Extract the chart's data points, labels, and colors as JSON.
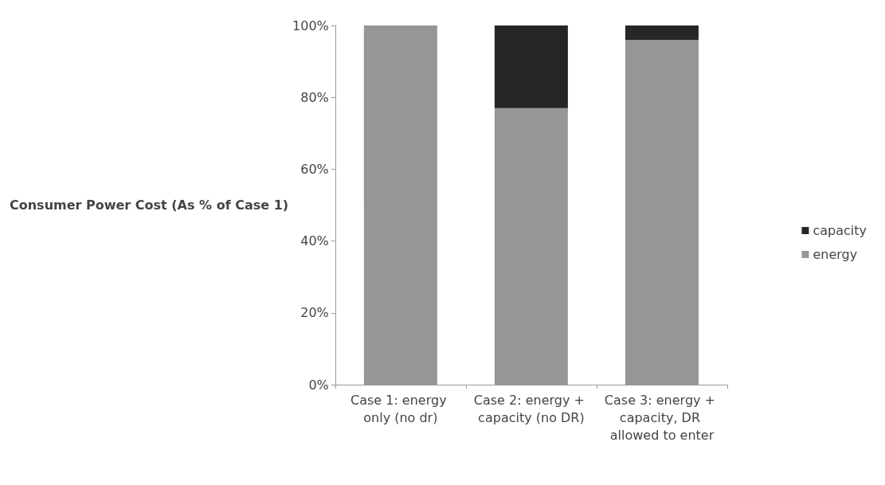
{
  "chart_data": {
    "type": "bar",
    "stacked": true,
    "ylabel": "Consumer Power Cost (As % of Case 1)",
    "categories": [
      "Case 1: energy only (no dr)",
      "Case 2: energy + capacity (no DR)",
      "Case 3: energy + capacity, DR allowed to enter"
    ],
    "series": [
      {
        "name": "energy",
        "color": "#969696",
        "values": [
          100,
          77,
          96
        ]
      },
      {
        "name": "capacity",
        "color": "#262626",
        "values": [
          0,
          23,
          4
        ]
      }
    ],
    "ylim": [
      0,
      100
    ],
    "yticks": [
      {
        "value": 0,
        "label": "0%"
      },
      {
        "value": 20,
        "label": "20%"
      },
      {
        "value": 40,
        "label": "40%"
      },
      {
        "value": 60,
        "label": "60%"
      },
      {
        "value": 80,
        "label": "80%"
      },
      {
        "value": 100,
        "label": "100%"
      }
    ],
    "grid": false,
    "legend": "right"
  }
}
